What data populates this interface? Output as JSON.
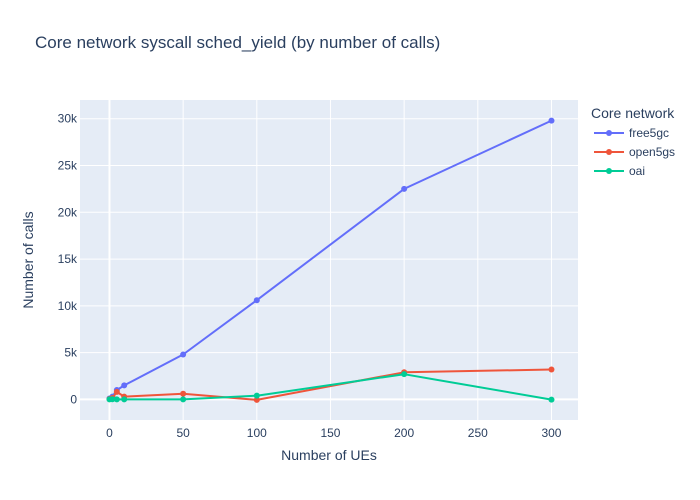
{
  "chart_data": {
    "type": "line",
    "title": "Core network syscall sched_yield (by number of calls)",
    "xlabel": "Number of UEs",
    "ylabel": "Number of calls",
    "xlim": [
      -20,
      318
    ],
    "ylim": [
      -2200,
      32000
    ],
    "x_ticks": [
      0,
      50,
      100,
      150,
      200,
      250,
      300
    ],
    "y_ticks": [
      0,
      5000,
      10000,
      15000,
      20000,
      25000,
      30000
    ],
    "y_tick_labels": [
      "0",
      "5k",
      "10k",
      "15k",
      "20k",
      "25k",
      "30k"
    ],
    "legend_title": "Core network",
    "legend_position": "top-right, outside plot",
    "plot_background": "#e5ecf6",
    "grid": true,
    "series": [
      {
        "name": "free5gc",
        "color": "#636efa",
        "x": [
          0,
          2,
          5,
          10,
          50,
          100,
          200,
          300
        ],
        "y": [
          100,
          300,
          1000,
          1500,
          4800,
          10600,
          22500,
          29800
        ]
      },
      {
        "name": "open5gs",
        "color": "#ef553b",
        "x": [
          0,
          2,
          5,
          10,
          50,
          100,
          200,
          300
        ],
        "y": [
          50,
          150,
          800,
          300,
          600,
          -50,
          2900,
          3200
        ]
      },
      {
        "name": "oai",
        "color": "#00cc96",
        "x": [
          0,
          2,
          5,
          10,
          50,
          100,
          200,
          300
        ],
        "y": [
          0,
          20,
          0,
          0,
          0,
          400,
          2700,
          -20
        ]
      }
    ]
  }
}
